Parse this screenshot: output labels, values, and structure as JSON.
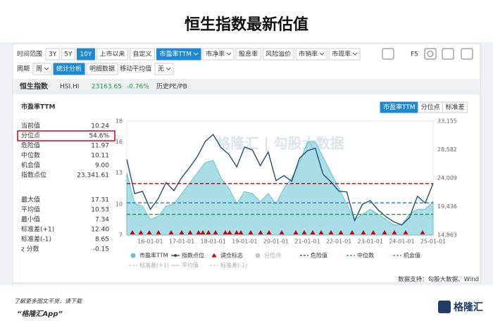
{
  "title": "恒生指数最新估值",
  "toolbar": {
    "row1": [
      {
        "text": "时间范围",
        "kind": "label"
      },
      {
        "text": "3Y"
      },
      {
        "text": "5Y"
      },
      {
        "text": "10Y",
        "active": true
      },
      {
        "text": "上市以来"
      },
      {
        "text": "自定义"
      },
      {
        "text": "市盈率TTM",
        "active": true,
        "dropdown": true
      },
      {
        "text": "市净率",
        "dropdown": true
      },
      {
        "text": "股息率"
      },
      {
        "text": "风险溢价"
      },
      {
        "text": "市销率",
        "dropdown": true
      },
      {
        "text": "市现率",
        "dropdown": true
      }
    ],
    "row2": [
      {
        "text": "周期",
        "kind": "label"
      },
      {
        "text": "周",
        "dropdown": true
      },
      {
        "text": "统计分析",
        "active": true
      },
      {
        "text": "明细数据"
      },
      {
        "text": "移动平均值",
        "kind": "label"
      },
      {
        "text": "无",
        "dropdown": true
      }
    ],
    "f5": "F5"
  },
  "index_bar": {
    "name": "恒生指数",
    "code": "HSI.HI",
    "price": "23163.65",
    "change": "-0.76%",
    "mode": "历史PE/PB"
  },
  "panel_title": "市盈率TTM",
  "tabs": [
    {
      "text": "市盈率TTM",
      "active": true
    },
    {
      "text": "分位点"
    },
    {
      "text": "标准差"
    }
  ],
  "stats": [
    {
      "label": "当前值",
      "value": "10.24"
    },
    {
      "label": "分位点",
      "value": "54.6%",
      "highlight": true
    },
    {
      "label": "危险值",
      "value": "11.97"
    },
    {
      "label": "中位数",
      "value": "10.11"
    },
    {
      "label": "机会值",
      "value": "9.00"
    },
    {
      "label": "指数点位",
      "value": "23,341.61"
    },
    {
      "label": "最大值",
      "value": "17.31"
    },
    {
      "label": "平均值",
      "value": "10.53"
    },
    {
      "label": "最小值",
      "value": "7.34"
    },
    {
      "label": "标准差(+1)",
      "value": "12.40"
    },
    {
      "label": "标准差(-1)",
      "value": "8.65"
    },
    {
      "label": "z 分数",
      "value": "-0.15"
    }
  ],
  "watermark": "格隆汇 | 勾股大数据",
  "chart_data": {
    "type": "line",
    "categories": [
      null,
      null,
      null,
      "16-01-01",
      null,
      null,
      null,
      "17-01-01",
      null,
      null,
      null,
      "18-01-01",
      null,
      null,
      null,
      "19-01-01",
      null,
      null,
      null,
      "20-01-01",
      null,
      null,
      null,
      "21-01-01",
      null,
      null,
      null,
      "22-01-01",
      null,
      null,
      null,
      "23-01-01",
      null,
      null,
      null,
      "24-01-01",
      null,
      null,
      null,
      "25-01-01"
    ],
    "series": [
      {
        "name": "市盈率TTM",
        "color": "#62c3d3",
        "style": "area",
        "values": [
          13,
          10,
          9.8,
          8.5,
          8.8,
          9.8,
          10,
          11,
          12,
          13,
          14,
          14.2,
          12.5,
          11.5,
          10,
          11.2,
          11,
          10.2,
          11,
          10,
          11.5,
          12.5,
          14,
          16,
          16,
          14.5,
          13,
          11.5,
          10,
          8.5,
          9,
          9.5,
          9,
          8.5,
          8,
          8,
          9,
          9.5,
          9.5,
          10.24
        ]
      },
      {
        "name": "指数点位",
        "color": "#1f4e79",
        "axis": "y2",
        "values": [
          27000,
          21500,
          21900,
          19000,
          20700,
          23300,
          22000,
          24100,
          25700,
          27500,
          29900,
          31000,
          28900,
          27800,
          25800,
          29000,
          28500,
          26000,
          28200,
          23600,
          24400,
          23500,
          27200,
          28400,
          28800,
          24600,
          23400,
          21900,
          21800,
          17200,
          19800,
          20400,
          18900,
          17800,
          17000,
          16500,
          17700,
          21100,
          20000,
          23163.65
        ]
      }
    ],
    "reference_lines": [
      {
        "name": "危险值",
        "value": 11.97,
        "color": "#c00000"
      },
      {
        "name": "中位数",
        "value": 10.11,
        "color": "#2e75b6"
      },
      {
        "name": "机会值",
        "value": 9,
        "color": "#2e8b57"
      }
    ],
    "legend_extra": [
      {
        "name": "调仓标志",
        "marker": "triangle",
        "color": "#d00000"
      },
      {
        "name": "分位点",
        "marker": "circle",
        "color": "#c8c8c8"
      },
      {
        "name": "标准差(+1)",
        "marker": "dashed",
        "color": "#c8c8c8"
      },
      {
        "name": "平均值",
        "marker": "line",
        "color": "#c8c8c8"
      },
      {
        "name": "标准差(-1)",
        "marker": "dashed",
        "color": "#c8c8c8"
      }
    ],
    "ylim": [
      7,
      18
    ],
    "yticks": [
      7,
      10,
      13,
      16,
      18
    ],
    "y2lim": [
      14863,
      33155
    ],
    "y2ticks": [
      {
        "value": 14863,
        "label": "14,863"
      },
      {
        "value": 19436,
        "label": "19,436"
      },
      {
        "value": 24009,
        "label": "24,009"
      },
      {
        "value": 28582,
        "label": "28,582"
      },
      {
        "value": 33155,
        "label": "33,155"
      }
    ]
  },
  "source": "数据支持：勾股大数据、Wind",
  "footer": {
    "note": "了解更多图文干货，请下载",
    "app": "“格隆汇App”",
    "logo": "格隆汇"
  }
}
